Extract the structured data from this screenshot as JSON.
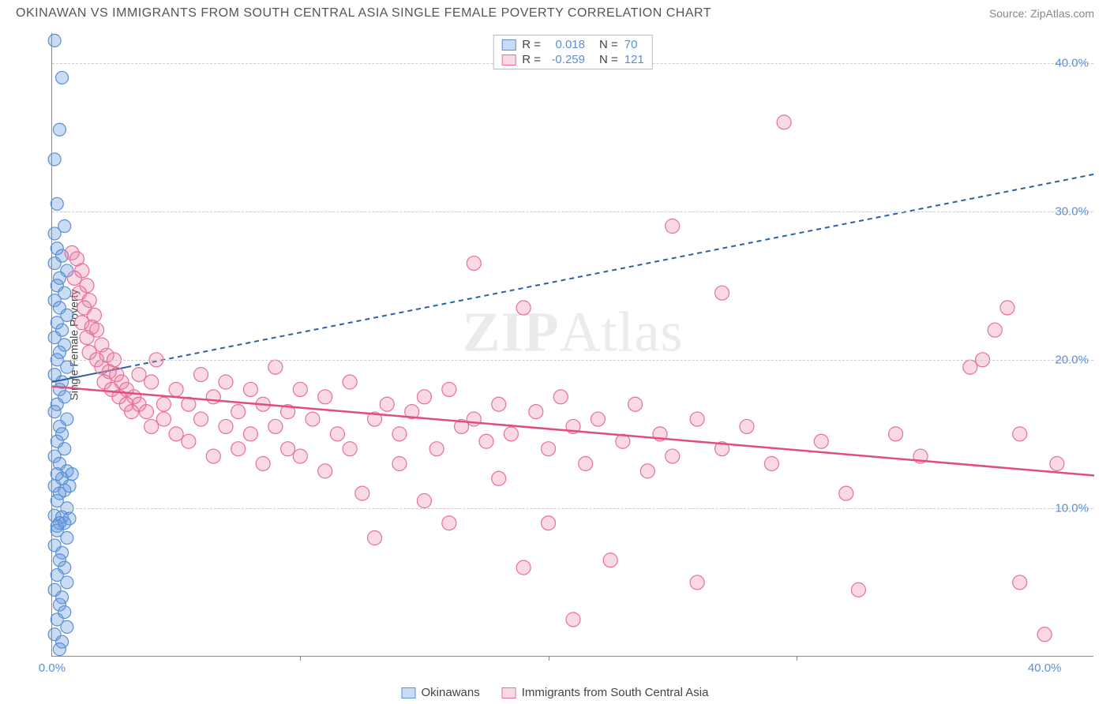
{
  "header": {
    "title": "OKINAWAN VS IMMIGRANTS FROM SOUTH CENTRAL ASIA SINGLE FEMALE POVERTY CORRELATION CHART",
    "source": "Source: ZipAtlas.com"
  },
  "chart": {
    "type": "scatter",
    "y_axis_label": "Single Female Poverty",
    "watermark_bold": "ZIP",
    "watermark_thin": "Atlas",
    "x_range": [
      0,
      42
    ],
    "y_range": [
      0,
      42
    ],
    "y_ticks": [
      {
        "v": 10,
        "label": "10.0%"
      },
      {
        "v": 20,
        "label": "20.0%"
      },
      {
        "v": 30,
        "label": "30.0%"
      },
      {
        "v": 40,
        "label": "40.0%"
      }
    ],
    "x_ticks_labeled": [
      {
        "v": 0,
        "label": "0.0%"
      },
      {
        "v": 40,
        "label": "40.0%"
      }
    ],
    "x_ticks_minor": [
      10,
      20,
      30
    ],
    "grid_color": "#cccccc",
    "series": [
      {
        "id": "okinawans",
        "label": "Okinawans",
        "marker_color_fill": "rgba(100,155,220,0.35)",
        "marker_color_stroke": "#5b8fd6",
        "marker_radius": 8,
        "trend": {
          "x1": 0,
          "y1": 18.5,
          "x2": 42,
          "y2": 32.5,
          "solid_until_x": 3,
          "color": "#2b5fa6",
          "width": 2,
          "dash": "6,5"
        },
        "R": "0.018",
        "N": "70",
        "points": [
          [
            0.1,
            41.5
          ],
          [
            0.4,
            39.0
          ],
          [
            0.3,
            35.5
          ],
          [
            0.1,
            33.5
          ],
          [
            0.2,
            30.5
          ],
          [
            0.5,
            29.0
          ],
          [
            0.1,
            28.5
          ],
          [
            0.2,
            27.5
          ],
          [
            0.4,
            27.0
          ],
          [
            0.1,
            26.5
          ],
          [
            0.6,
            26.0
          ],
          [
            0.3,
            25.5
          ],
          [
            0.2,
            25.0
          ],
          [
            0.5,
            24.5
          ],
          [
            0.1,
            24.0
          ],
          [
            0.3,
            23.5
          ],
          [
            0.6,
            23.0
          ],
          [
            0.2,
            22.5
          ],
          [
            0.4,
            22.0
          ],
          [
            0.1,
            21.5
          ],
          [
            0.5,
            21.0
          ],
          [
            0.3,
            20.5
          ],
          [
            0.2,
            20.0
          ],
          [
            0.6,
            19.5
          ],
          [
            0.1,
            19.0
          ],
          [
            0.4,
            18.5
          ],
          [
            0.3,
            18.0
          ],
          [
            0.5,
            17.5
          ],
          [
            0.2,
            17.0
          ],
          [
            0.1,
            16.5
          ],
          [
            0.6,
            16.0
          ],
          [
            0.3,
            15.5
          ],
          [
            0.4,
            15.0
          ],
          [
            0.2,
            14.5
          ],
          [
            0.5,
            14.0
          ],
          [
            0.1,
            13.5
          ],
          [
            0.3,
            13.0
          ],
          [
            0.6,
            12.5
          ],
          [
            0.8,
            12.3
          ],
          [
            0.2,
            12.3
          ],
          [
            0.4,
            12.0
          ],
          [
            0.1,
            11.5
          ],
          [
            0.7,
            11.5
          ],
          [
            0.5,
            11.2
          ],
          [
            0.3,
            11.0
          ],
          [
            0.2,
            10.5
          ],
          [
            0.6,
            10.0
          ],
          [
            0.1,
            9.5
          ],
          [
            0.4,
            9.4
          ],
          [
            0.7,
            9.3
          ],
          [
            0.5,
            9.0
          ],
          [
            0.3,
            9.0
          ],
          [
            0.2,
            8.8
          ],
          [
            0.2,
            8.5
          ],
          [
            0.6,
            8.0
          ],
          [
            0.1,
            7.5
          ],
          [
            0.4,
            7.0
          ],
          [
            0.3,
            6.5
          ],
          [
            0.5,
            6.0
          ],
          [
            0.2,
            5.5
          ],
          [
            0.6,
            5.0
          ],
          [
            0.1,
            4.5
          ],
          [
            0.4,
            4.0
          ],
          [
            0.3,
            3.5
          ],
          [
            0.5,
            3.0
          ],
          [
            0.2,
            2.5
          ],
          [
            0.6,
            2.0
          ],
          [
            0.1,
            1.5
          ],
          [
            0.4,
            1.0
          ],
          [
            0.3,
            0.5
          ]
        ]
      },
      {
        "id": "immigrants",
        "label": "Immigrants from South Central Asia",
        "marker_color_fill": "rgba(235,130,165,0.30)",
        "marker_color_stroke": "#e86f9a",
        "marker_radius": 9,
        "trend": {
          "x1": 0,
          "y1": 18.2,
          "x2": 42,
          "y2": 12.2,
          "solid_until_x": 42,
          "color": "#e04c85",
          "width": 2.5,
          "dash": ""
        },
        "R": "-0.259",
        "N": "121",
        "points": [
          [
            0.8,
            27.2
          ],
          [
            1.0,
            26.8
          ],
          [
            1.2,
            26.0
          ],
          [
            0.9,
            25.5
          ],
          [
            1.4,
            25.0
          ],
          [
            1.1,
            24.5
          ],
          [
            1.5,
            24.0
          ],
          [
            1.3,
            23.5
          ],
          [
            1.7,
            23.0
          ],
          [
            1.2,
            22.5
          ],
          [
            1.6,
            22.2
          ],
          [
            1.8,
            22.0
          ],
          [
            1.4,
            21.5
          ],
          [
            2.0,
            21.0
          ],
          [
            1.5,
            20.5
          ],
          [
            2.2,
            20.3
          ],
          [
            1.8,
            20.0
          ],
          [
            2.5,
            20.0
          ],
          [
            2.0,
            19.5
          ],
          [
            2.3,
            19.2
          ],
          [
            2.6,
            19.0
          ],
          [
            2.1,
            18.5
          ],
          [
            2.8,
            18.5
          ],
          [
            2.4,
            18.0
          ],
          [
            3.0,
            18.0
          ],
          [
            2.7,
            17.5
          ],
          [
            3.3,
            17.5
          ],
          [
            3.5,
            19.0
          ],
          [
            3.0,
            17.0
          ],
          [
            3.5,
            17.0
          ],
          [
            3.2,
            16.5
          ],
          [
            3.8,
            16.5
          ],
          [
            4.0,
            18.5
          ],
          [
            4.2,
            20.0
          ],
          [
            4.5,
            17.0
          ],
          [
            4.0,
            15.5
          ],
          [
            4.5,
            16.0
          ],
          [
            5.0,
            18.0
          ],
          [
            5.0,
            15.0
          ],
          [
            5.5,
            17.0
          ],
          [
            5.5,
            14.5
          ],
          [
            6.0,
            19.0
          ],
          [
            6.0,
            16.0
          ],
          [
            6.5,
            17.5
          ],
          [
            6.5,
            13.5
          ],
          [
            7.0,
            18.5
          ],
          [
            7.0,
            15.5
          ],
          [
            7.5,
            16.5
          ],
          [
            7.5,
            14.0
          ],
          [
            8.0,
            18.0
          ],
          [
            8.0,
            15.0
          ],
          [
            8.5,
            17.0
          ],
          [
            8.5,
            13.0
          ],
          [
            9.0,
            19.5
          ],
          [
            9.0,
            15.5
          ],
          [
            9.5,
            16.5
          ],
          [
            9.5,
            14.0
          ],
          [
            10.0,
            18.0
          ],
          [
            10.0,
            13.5
          ],
          [
            10.5,
            16.0
          ],
          [
            11.0,
            17.5
          ],
          [
            11.0,
            12.5
          ],
          [
            11.5,
            15.0
          ],
          [
            12.0,
            18.5
          ],
          [
            12.0,
            14.0
          ],
          [
            12.5,
            11.0
          ],
          [
            13.0,
            16.0
          ],
          [
            13.0,
            8.0
          ],
          [
            13.5,
            17.0
          ],
          [
            14.0,
            15.0
          ],
          [
            14.0,
            13.0
          ],
          [
            14.5,
            16.5
          ],
          [
            15.0,
            17.5
          ],
          [
            15.0,
            10.5
          ],
          [
            15.5,
            14.0
          ],
          [
            16.0,
            18.0
          ],
          [
            16.0,
            9.0
          ],
          [
            16.5,
            15.5
          ],
          [
            17.0,
            16.0
          ],
          [
            17.0,
            26.5
          ],
          [
            17.5,
            14.5
          ],
          [
            18.0,
            17.0
          ],
          [
            18.0,
            12.0
          ],
          [
            18.5,
            15.0
          ],
          [
            19.0,
            23.5
          ],
          [
            19.0,
            6.0
          ],
          [
            19.5,
            16.5
          ],
          [
            20.0,
            14.0
          ],
          [
            20.0,
            9.0
          ],
          [
            20.5,
            17.5
          ],
          [
            21.0,
            15.5
          ],
          [
            21.0,
            2.5
          ],
          [
            21.5,
            13.0
          ],
          [
            22.0,
            16.0
          ],
          [
            22.5,
            6.5
          ],
          [
            23.0,
            14.5
          ],
          [
            23.5,
            17.0
          ],
          [
            24.0,
            12.5
          ],
          [
            24.5,
            15.0
          ],
          [
            25.0,
            13.5
          ],
          [
            25.0,
            29.0
          ],
          [
            26.0,
            16.0
          ],
          [
            26.0,
            5.0
          ],
          [
            27.0,
            14.0
          ],
          [
            27.0,
            24.5
          ],
          [
            28.0,
            15.5
          ],
          [
            29.0,
            13.0
          ],
          [
            29.5,
            36.0
          ],
          [
            31.0,
            14.5
          ],
          [
            32.0,
            11.0
          ],
          [
            32.5,
            4.5
          ],
          [
            34.0,
            15.0
          ],
          [
            35.0,
            13.5
          ],
          [
            37.0,
            19.5
          ],
          [
            37.5,
            20.0
          ],
          [
            38.0,
            22.0
          ],
          [
            38.5,
            23.5
          ],
          [
            39.0,
            15.0
          ],
          [
            39.0,
            5.0
          ],
          [
            40.0,
            1.5
          ],
          [
            40.5,
            13.0
          ]
        ]
      }
    ],
    "legend_top": {
      "rows": [
        {
          "swatch_fill": "rgba(100,155,220,0.35)",
          "swatch_stroke": "#5b8fd6",
          "r_label": "R =",
          "r_val": "0.018",
          "n_label": "N =",
          "n_val": "70"
        },
        {
          "swatch_fill": "rgba(235,130,165,0.30)",
          "swatch_stroke": "#e86f9a",
          "r_label": "R =",
          "r_val": "-0.259",
          "n_label": "N =",
          "n_val": "121"
        }
      ]
    }
  }
}
